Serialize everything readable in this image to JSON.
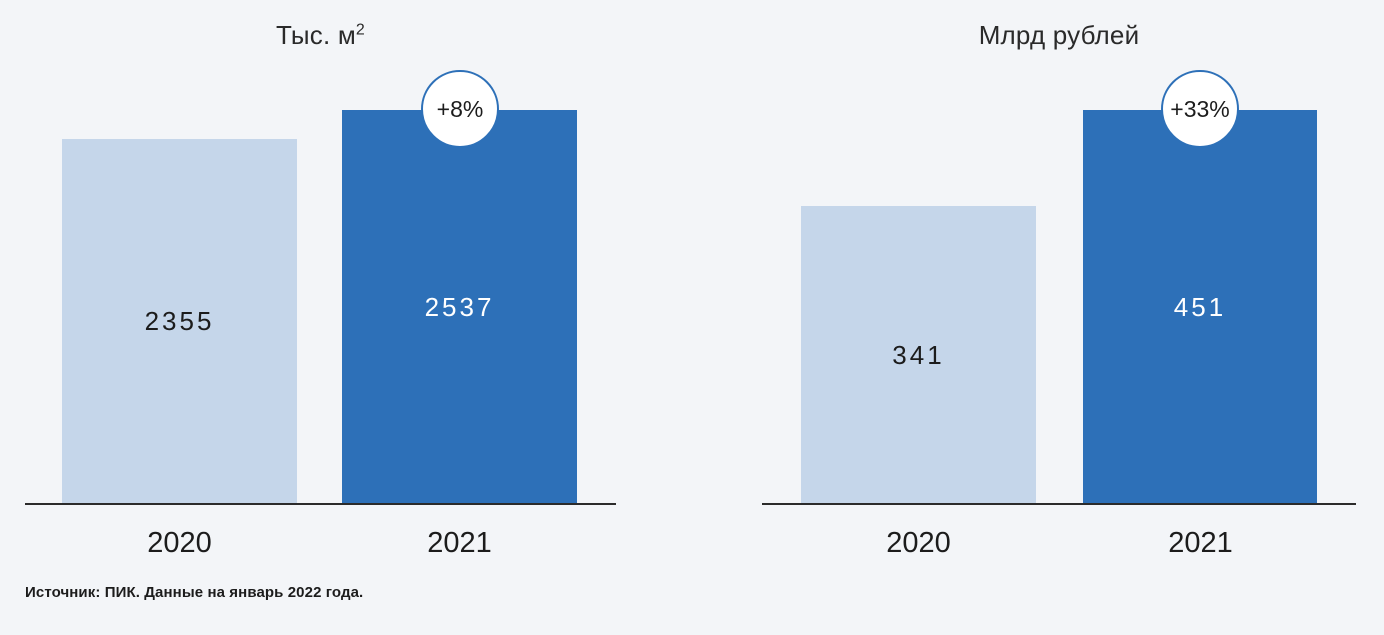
{
  "page": {
    "background": "#f3f5f8",
    "source_note": "Источник: ПИК. Данные на январь 2022 года."
  },
  "colors": {
    "bar_2020": "#c5d6ea",
    "bar_2021": "#2d70b8",
    "axis_line": "#2b2b2b",
    "badge_background": "#ffffff",
    "badge_border": "#2d70b8",
    "value_text_on_light": "#1c1c1c",
    "value_text_on_dark": "#ffffff"
  },
  "chart_data": [
    {
      "type": "bar",
      "title": "Тыс. м²",
      "title_main": "Тыс. м",
      "title_sup": "2",
      "categories": [
        "2020",
        "2021"
      ],
      "values": [
        2355,
        2537
      ],
      "change_badge": "+8%",
      "bar_colors": [
        "#c5d6ea",
        "#2d70b8"
      ],
      "ylim": [
        0,
        2537
      ],
      "grid": false,
      "legend": false,
      "value_labels_position": "center-of-bar"
    },
    {
      "type": "bar",
      "title": "Млрд рублей",
      "title_main": "Млрд рублей",
      "categories": [
        "2020",
        "2021"
      ],
      "values": [
        341,
        451
      ],
      "change_badge": "+33%",
      "bar_colors": [
        "#c5d6ea",
        "#2d70b8"
      ],
      "ylim": [
        0,
        451
      ],
      "grid": false,
      "legend": false,
      "value_labels_position": "center-of-bar"
    }
  ]
}
